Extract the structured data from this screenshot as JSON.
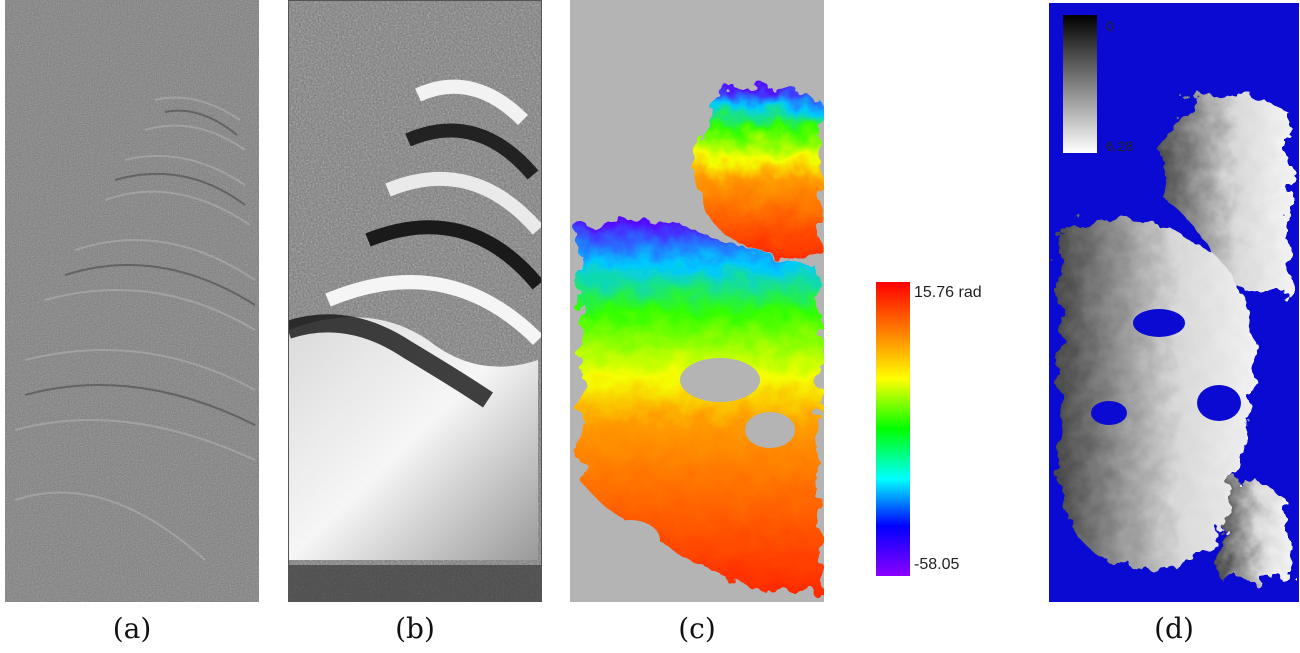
{
  "captions": {
    "a": "(a)",
    "b": "(b)",
    "c": "(c)",
    "d": "(d)"
  },
  "colorbar_c": {
    "max_label": "15.76 rad",
    "min_label": "-58.05"
  },
  "colorbar_d": {
    "min_label": "0",
    "max_label": "6.28"
  },
  "colors": {
    "mask_gray": "#b4b4b4",
    "mask_blue": "#0a0ad2",
    "rainbow": [
      "#ff0000",
      "#ff7f00",
      "#ffff00",
      "#00ff00",
      "#00ffff",
      "#0000ff",
      "#8b00ff"
    ]
  }
}
